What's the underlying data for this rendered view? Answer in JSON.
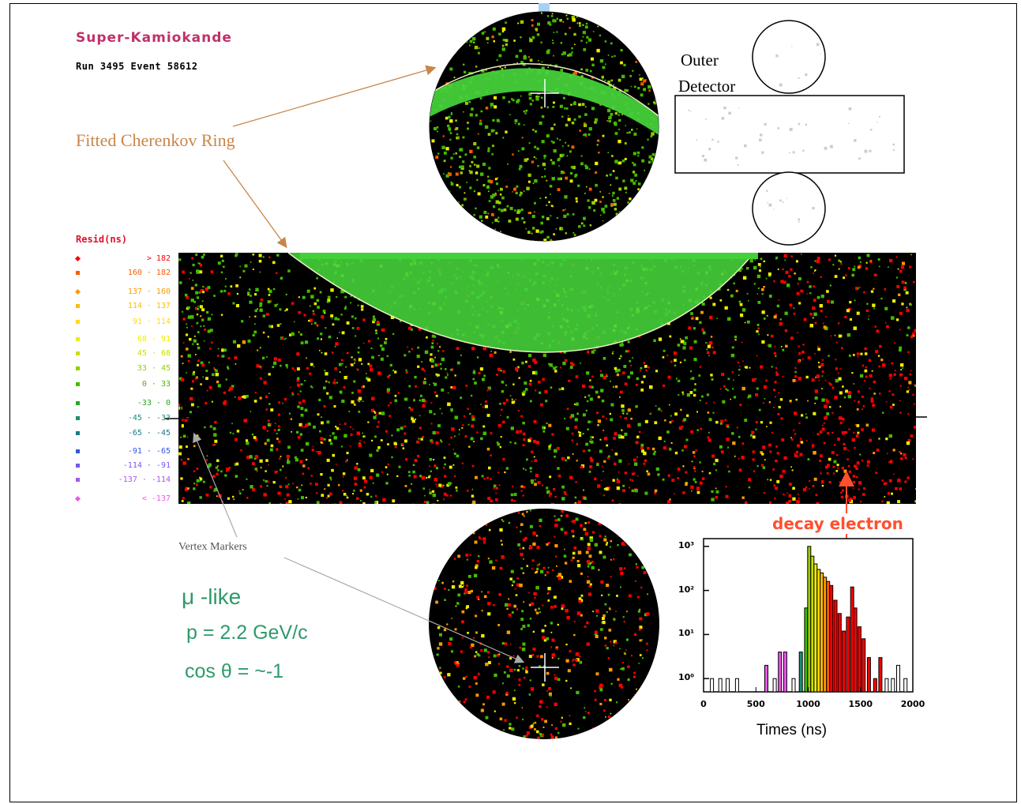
{
  "header": {
    "title": "Super-Kamiokande",
    "run_info": "Run 3495 Event 58612"
  },
  "annotations": {
    "ring_label": "Fitted Cherenkov Ring",
    "outer_detector_line1": "Outer",
    "outer_detector_line2": "Detector",
    "vertex_markers": "Vertex Markers",
    "particle_type": "μ -like",
    "momentum": "p = 2.2 GeV/c",
    "angle": "cos θ = ~-1",
    "decay_electron": "decay electron"
  },
  "legend": {
    "title": "Resid(ns)",
    "items": [
      {
        "range": "> 182",
        "color": "#ff0000",
        "shape": "diamond"
      },
      {
        "range": "160 · 182",
        "color": "#ff5a00",
        "shape": "square"
      },
      {
        "range": "137 · 160",
        "color": "#ff9a00",
        "shape": "diamond"
      },
      {
        "range": "114 · 137",
        "color": "#ffbb00",
        "shape": "square"
      },
      {
        "range": "91 · 114",
        "color": "#ffdd00",
        "shape": "square"
      },
      {
        "range": "68 · 91",
        "color": "#eeee00",
        "shape": "square"
      },
      {
        "range": "45 · 68",
        "color": "#ccdd00",
        "shape": "square"
      },
      {
        "range": "33 · 45",
        "color": "#99cc00",
        "shape": "square"
      },
      {
        "range": "0 · 33",
        "color": "#44bb00",
        "shape": "square"
      },
      {
        "range": "-33 · 0",
        "color": "#22aa22",
        "shape": "square"
      },
      {
        "range": "-45 · -33",
        "color": "#1a9070",
        "shape": "square"
      },
      {
        "range": "-65 · -45",
        "color": "#1a7a8a",
        "shape": "square"
      },
      {
        "range": "-91 · -65",
        "color": "#3355dd",
        "shape": "square"
      },
      {
        "range": "-114 · -91",
        "color": "#7755ee",
        "shape": "square"
      },
      {
        "range": "-137 · -114",
        "color": "#aa55ee",
        "shape": "square"
      },
      {
        "range": "< -137",
        "color": "#ee55ee",
        "shape": "diamond"
      }
    ]
  },
  "chart_data": {
    "type": "bar",
    "title": "",
    "xlabel": "Times (ns)",
    "ylabel": "",
    "xlim": [
      0,
      2000
    ],
    "x_ticks": [
      "0",
      "500",
      "1000",
      "1500",
      "2000"
    ],
    "y_ticks": [
      "10³",
      "10²",
      "10¹",
      "10⁰"
    ],
    "y_tick_values": [
      1000,
      100,
      10,
      1
    ],
    "ylim": [
      0.5,
      1500
    ],
    "ylog": true,
    "bins": [
      {
        "x": 80,
        "y": 1
      },
      {
        "x": 160,
        "y": 1
      },
      {
        "x": 230,
        "y": 1
      },
      {
        "x": 320,
        "y": 1
      },
      {
        "x": 600,
        "y": 2,
        "color": "#ee55ee"
      },
      {
        "x": 680,
        "y": 1
      },
      {
        "x": 730,
        "y": 4,
        "color": "#ee55ee"
      },
      {
        "x": 780,
        "y": 4,
        "color": "#ee55ee"
      },
      {
        "x": 860,
        "y": 1
      },
      {
        "x": 930,
        "y": 4,
        "color": "#1a9070"
      },
      {
        "x": 980,
        "y": 40,
        "color": "#44bb00"
      },
      {
        "x": 1010,
        "y": 1000,
        "color": "#99cc00"
      },
      {
        "x": 1040,
        "y": 600,
        "color": "#ccdd00"
      },
      {
        "x": 1070,
        "y": 400,
        "color": "#eeee00"
      },
      {
        "x": 1100,
        "y": 300,
        "color": "#ffdd00"
      },
      {
        "x": 1130,
        "y": 250,
        "color": "#ffbb00"
      },
      {
        "x": 1160,
        "y": 200,
        "color": "#ff9a00"
      },
      {
        "x": 1190,
        "y": 160,
        "color": "#ff5a00"
      },
      {
        "x": 1220,
        "y": 130,
        "color": "#ff0000"
      },
      {
        "x": 1260,
        "y": 60,
        "color": "#ff0000"
      },
      {
        "x": 1300,
        "y": 30,
        "color": "#ff0000"
      },
      {
        "x": 1340,
        "y": 12,
        "color": "#ff0000"
      },
      {
        "x": 1380,
        "y": 25,
        "color": "#ff0000"
      },
      {
        "x": 1420,
        "y": 120,
        "color": "#ff0000"
      },
      {
        "x": 1450,
        "y": 40,
        "color": "#ff0000"
      },
      {
        "x": 1490,
        "y": 15,
        "color": "#ff0000"
      },
      {
        "x": 1530,
        "y": 8,
        "color": "#ff0000"
      },
      {
        "x": 1580,
        "y": 3,
        "color": "#ff0000"
      },
      {
        "x": 1640,
        "y": 1,
        "color": "#ff0000"
      },
      {
        "x": 1690,
        "y": 3,
        "color": "#ff0000"
      },
      {
        "x": 1750,
        "y": 1
      },
      {
        "x": 1810,
        "y": 1
      },
      {
        "x": 1860,
        "y": 2
      },
      {
        "x": 1930,
        "y": 1
      }
    ]
  }
}
